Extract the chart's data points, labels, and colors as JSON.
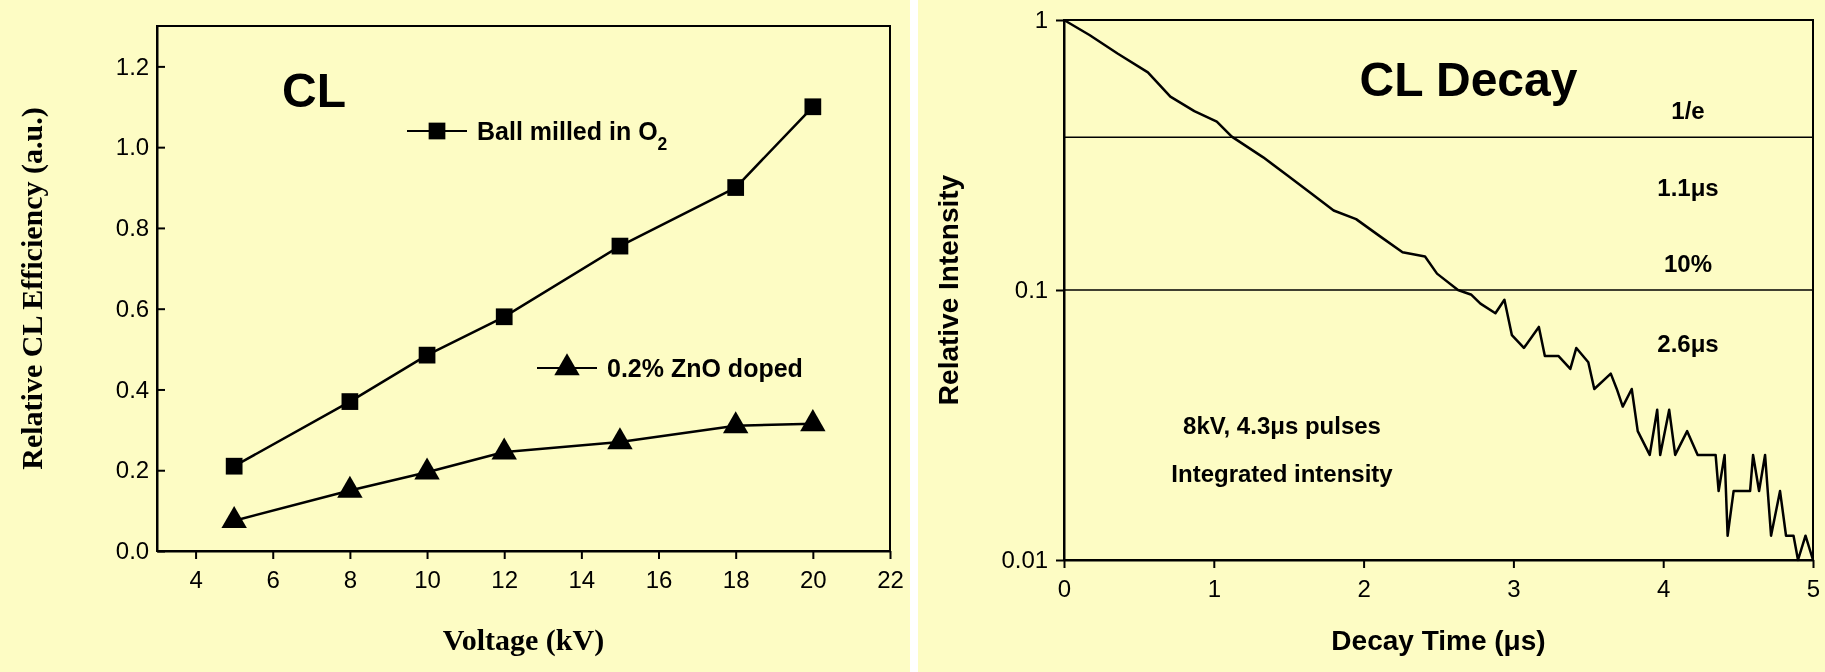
{
  "chart_data": [
    {
      "type": "line",
      "title": "CL",
      "xlabel": "Voltage (kV)",
      "ylabel": "Relative CL Efficiency (a.u.)",
      "x": [
        5,
        8,
        10,
        12,
        15,
        18,
        20
      ],
      "series": [
        {
          "name": "Ball milled in O$_{2}$",
          "color": "#000000",
          "marker": "square",
          "values": [
            0.21,
            0.37,
            0.485,
            0.58,
            0.755,
            0.9,
            1.1
          ]
        },
        {
          "name": "0.2% ZnO doped",
          "color": "#000000",
          "marker": "triangle",
          "values": [
            0.075,
            0.15,
            0.195,
            0.245,
            0.27,
            0.31,
            0.315
          ]
        }
      ],
      "xlim": [
        3,
        22
      ],
      "xticks": [
        4,
        6,
        8,
        10,
        12,
        14,
        16,
        18,
        20,
        22
      ],
      "ylim": [
        0,
        1.3
      ],
      "yticks": [
        {
          "value": 0,
          "label": "0.0"
        },
        {
          "value": 0.2,
          "label": "0.2"
        },
        {
          "value": 0.4,
          "label": "0.4"
        },
        {
          "value": 0.6,
          "label": "0.6"
        },
        {
          "value": 0.8,
          "label": "0.8"
        },
        {
          "value": 1,
          "label": "1.0"
        },
        {
          "value": 1.2,
          "label": "1.2"
        }
      ],
      "legend": "right",
      "grid": false
    },
    {
      "type": "line",
      "title": "CL Decay",
      "xlabel": "Decay Time (μs)",
      "ylabel": "Relative Intensity",
      "log": "y",
      "marker": "none",
      "grid": false,
      "x": [
        0,
        0.17,
        0.36,
        0.56,
        0.71,
        0.87,
        1.02,
        1.12,
        1.33,
        1.49,
        1.64,
        1.8,
        1.95,
        2.11,
        2.26,
        2.41,
        2.49,
        2.63,
        2.72,
        2.78,
        2.88,
        2.94,
        2.99,
        3.07,
        3.17,
        3.21,
        3.3,
        3.38,
        3.42,
        3.5,
        3.54,
        3.65,
        3.69,
        3.73,
        3.79,
        3.83,
        3.91,
        3.96,
        3.98,
        4.04,
        4.08,
        4.16,
        4.23,
        4.35,
        4.37,
        4.41,
        4.43,
        4.47,
        4.58,
        4.6,
        4.64,
        4.68,
        4.72,
        4.78,
        4.82,
        4.87,
        4.9,
        4.95,
        5
      ],
      "series": [
        {
          "color": "#000000",
          "values": [
            1,
            0.88,
            0.75,
            0.64,
            0.52,
            0.46,
            0.42,
            0.37,
            0.31,
            0.266,
            0.23,
            0.197,
            0.183,
            0.158,
            0.138,
            0.133,
            0.115,
            0.1,
            0.096,
            0.089,
            0.082,
            0.092,
            0.068,
            0.061,
            0.073,
            0.057,
            0.057,
            0.051,
            0.061,
            0.054,
            0.043,
            0.049,
            0.043,
            0.037,
            0.043,
            0.03,
            0.0245,
            0.036,
            0.0245,
            0.036,
            0.0245,
            0.03,
            0.0245,
            0.0245,
            0.018,
            0.0245,
            0.0123,
            0.018,
            0.018,
            0.0245,
            0.018,
            0.0245,
            0.0123,
            0.018,
            0.0123,
            0.0123,
            0.01,
            0.0123,
            0.01
          ]
        }
      ],
      "xlim": [
        0,
        5
      ],
      "xticks": [
        0,
        1,
        2,
        3,
        4,
        5
      ],
      "ylim": [
        0.01,
        1
      ],
      "yticks": [
        0.01,
        0.1,
        1
      ],
      "ref_lines": [
        {
          "axis": "y",
          "value": 0.368,
          "label": "1/e"
        },
        {
          "axis": "y",
          "value": 0.1,
          "label": "10%"
        }
      ],
      "annotations": [
        "1.1μs",
        "2.6μs",
        "8kV, 4.3μs pulses",
        "Integrated intensity"
      ]
    }
  ]
}
